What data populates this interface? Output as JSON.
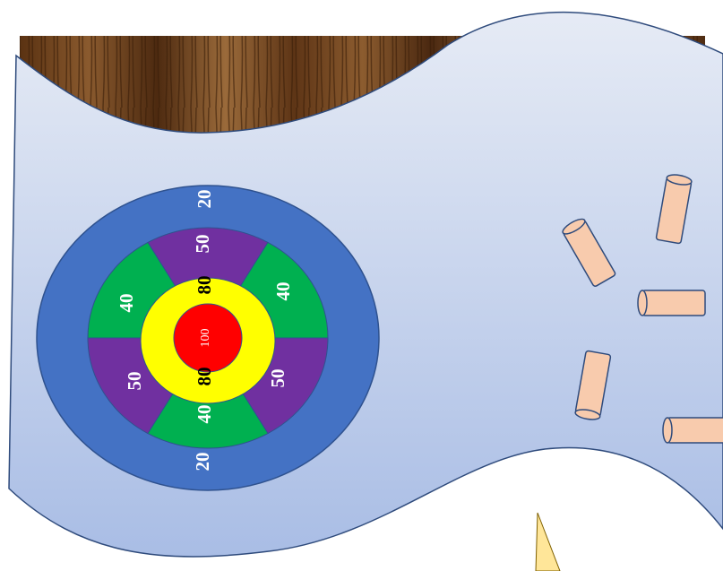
{
  "target": {
    "outer_ring": [
      "20",
      "20"
    ],
    "purple_segments": [
      "50",
      "50",
      "50"
    ],
    "green_segments": [
      "40",
      "40",
      "40"
    ],
    "yellow_ring": [
      "80",
      "80"
    ],
    "bullseye": "100"
  }
}
